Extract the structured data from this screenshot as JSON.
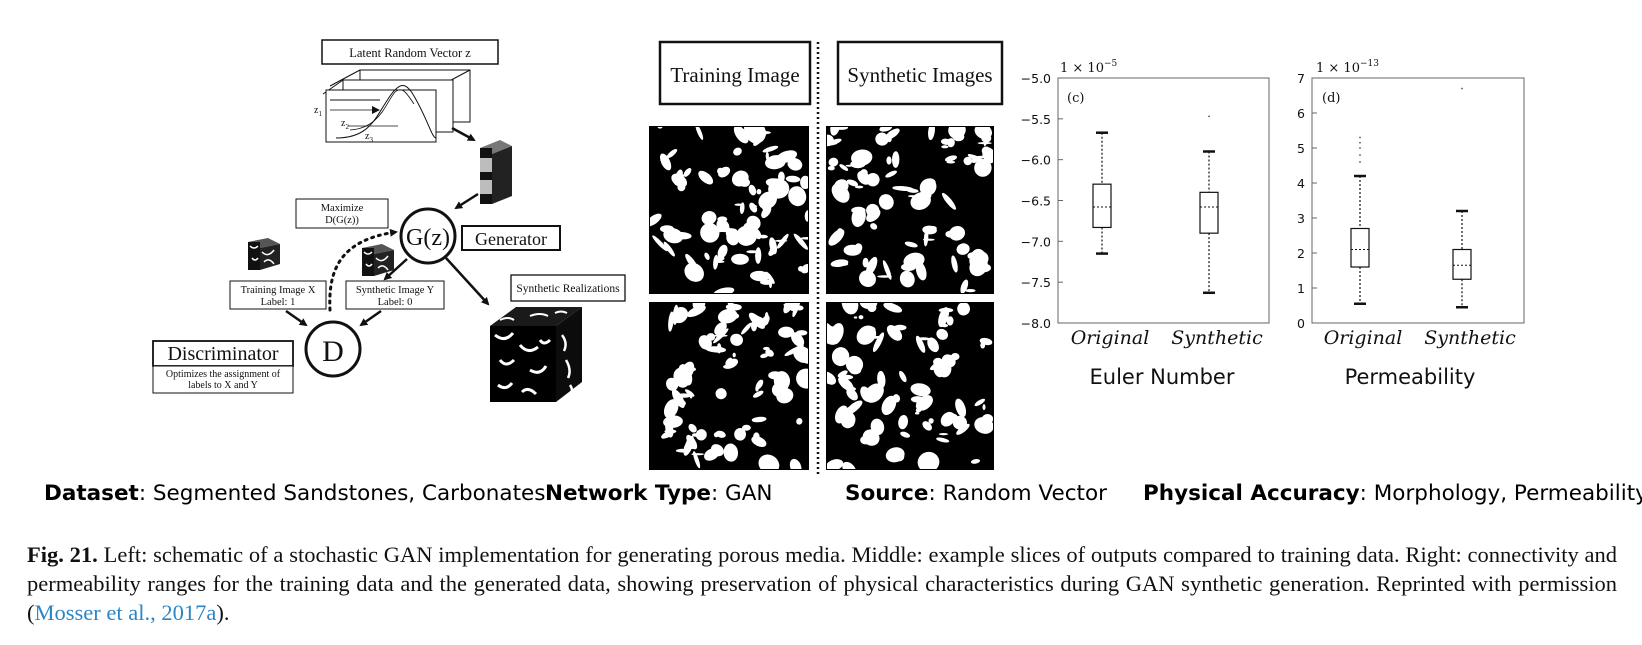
{
  "schematic": {
    "latent_label": "Latent Random Vector z",
    "z_labels": [
      "z",
      "z",
      "z"
    ],
    "z_subs": [
      "1",
      "2",
      "3"
    ],
    "gz": "G(z)",
    "generator": "Generator",
    "maximize_line1": "Maximize",
    "maximize_line2": "D(G(z))",
    "training_line1": "Training Image X",
    "training_line2": "Label: 1",
    "synthetic_line1": "Synthetic Image Y",
    "synthetic_line2": "Label: 0",
    "synthetic_realizations": "Synthetic Realizations",
    "d": "D",
    "discriminator": "Discriminator",
    "optimizes_line1": "Optimizes the assignment of",
    "optimizes_line2": "labels to X and Y"
  },
  "middle": {
    "training_title": "Training Image",
    "synthetic_title": "Synthetic Images"
  },
  "chart_data": [
    {
      "type": "box",
      "panel": "(c)",
      "scale_label": "1 × 10",
      "scale_exp": "−5",
      "categories": [
        "Original",
        "Synthetic"
      ],
      "ylim": [
        -8.0,
        -5.0
      ],
      "yticks": [
        "−5.0",
        "−5.5",
        "−6.0",
        "−6.5",
        "−7.0",
        "−7.5",
        "−8.0"
      ],
      "ytick_values": [
        -5.0,
        -5.5,
        -6.0,
        -6.5,
        -7.0,
        -7.5,
        -8.0
      ],
      "boxes": [
        {
          "name": "Original",
          "whisker_low": -7.15,
          "q1": -6.83,
          "median": -6.58,
          "q3": -6.3,
          "whisker_high": -5.67,
          "outliers": []
        },
        {
          "name": "Synthetic",
          "whisker_low": -7.63,
          "q1": -6.9,
          "median": -6.58,
          "q3": -6.4,
          "whisker_high": -5.9,
          "outliers": [
            -5.47
          ]
        }
      ],
      "xlabel": "Euler Number"
    },
    {
      "type": "box",
      "panel": "(d)",
      "scale_label": "1 × 10",
      "scale_exp": "−13",
      "categories": [
        "Original",
        "Synthetic"
      ],
      "ylim": [
        0,
        7
      ],
      "yticks": [
        "7",
        "6",
        "5",
        "4",
        "3",
        "2",
        "1",
        "0"
      ],
      "ytick_values": [
        7,
        6,
        5,
        4,
        3,
        2,
        1,
        0
      ],
      "boxes": [
        {
          "name": "Original",
          "whisker_low": 0.55,
          "q1": 1.6,
          "median": 2.1,
          "q3": 2.7,
          "whisker_high": 4.2,
          "outliers": [
            4.6,
            4.8,
            5.0,
            5.15,
            5.3
          ]
        },
        {
          "name": "Synthetic",
          "whisker_low": 0.45,
          "q1": 1.25,
          "median": 1.65,
          "q3": 2.1,
          "whisker_high": 3.2,
          "outliers": [
            6.7
          ]
        }
      ],
      "xlabel": "Permeability"
    }
  ],
  "meta": [
    {
      "label": "Dataset",
      "value": ": Segmented Sandstones, Carbonates"
    },
    {
      "label": "Network Type",
      "value": ": GAN"
    },
    {
      "label": "Source",
      "value": ": Random Vector"
    },
    {
      "label": "Physical Accuracy",
      "value": ": Morphology, Permeability"
    }
  ],
  "caption": {
    "label": "Fig. 21.",
    "text": " Left: schematic of a stochastic GAN implementation for generating porous media. Middle: example slices of outputs compared to training data. Right: connectivity and permeability ranges for the training data and the generated data, showing preservation of physical characteristics during GAN synthetic generation. Reprinted with permission (",
    "link": "Mosser et al., 2017a",
    "end": ")."
  },
  "colors": {
    "link": "#2a86c6",
    "ink": "#111111",
    "bright_gray": "#bdbdbd"
  }
}
